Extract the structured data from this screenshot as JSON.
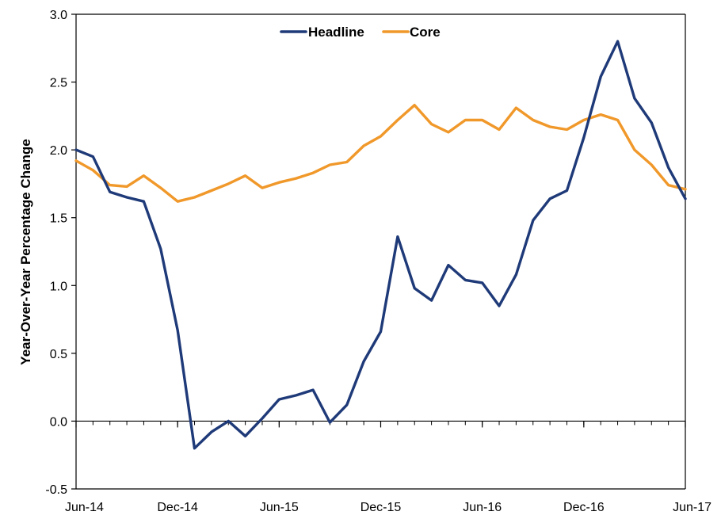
{
  "chart_data": {
    "type": "line",
    "title": "",
    "xlabel": "",
    "ylabel": "Year-Over-Year Percentage Change",
    "ylim": [
      -0.5,
      3.0
    ],
    "yticks": [
      "-0.5",
      "0.0",
      "0.5",
      "1.0",
      "1.5",
      "2.0",
      "2.5",
      "3.0"
    ],
    "ytick_values": [
      -0.5,
      0.0,
      0.5,
      1.0,
      1.5,
      2.0,
      2.5,
      3.0
    ],
    "xtick_labels": [
      "Jun-14",
      "Dec-14",
      "Jun-15",
      "Dec-15",
      "Jun-16",
      "Dec-16",
      "Jun-17"
    ],
    "xtick_dates": [
      "2014-06",
      "2014-12",
      "2015-06",
      "2015-12",
      "2016-06",
      "2016-12",
      "2017-06"
    ],
    "x": [
      "2014-06",
      "2014-07",
      "2014-08",
      "2014-09",
      "2014-10",
      "2014-11",
      "2014-12",
      "2015-01",
      "2015-02",
      "2015-03",
      "2015-04",
      "2015-05",
      "2015-06",
      "2015-07",
      "2015-08",
      "2015-09",
      "2015-10",
      "2015-11",
      "2015-12",
      "2016-01",
      "2016-02",
      "2016-03",
      "2016-04",
      "2016-05",
      "2016-06",
      "2016-07",
      "2016-08",
      "2016-09",
      "2016-10",
      "2016-11",
      "2016-12",
      "2017-01",
      "2017-02",
      "2017-03",
      "2017-04",
      "2017-05",
      "2017-06"
    ],
    "grid": false,
    "legend_position": "top-center",
    "series": [
      {
        "name": "Headline",
        "color": "#1f3a78",
        "values": [
          2.0,
          1.95,
          1.69,
          1.65,
          1.62,
          1.27,
          0.67,
          -0.2,
          -0.08,
          0.0,
          -0.11,
          0.02,
          0.16,
          0.19,
          0.23,
          -0.01,
          0.12,
          0.44,
          0.66,
          1.36,
          0.98,
          0.89,
          1.15,
          1.04,
          1.02,
          0.85,
          1.08,
          1.48,
          1.64,
          1.7,
          2.09,
          2.54,
          2.8,
          2.38,
          2.2,
          1.87,
          1.64
        ]
      },
      {
        "name": "Core",
        "color": "#f0982a",
        "values": [
          1.92,
          1.85,
          1.74,
          1.73,
          1.81,
          1.72,
          1.62,
          1.65,
          1.7,
          1.75,
          1.81,
          1.72,
          1.76,
          1.79,
          1.83,
          1.89,
          1.91,
          2.03,
          2.1,
          2.22,
          2.33,
          2.19,
          2.13,
          2.22,
          2.22,
          2.15,
          2.31,
          2.22,
          2.17,
          2.15,
          2.22,
          2.26,
          2.22,
          2.0,
          1.89,
          1.74,
          1.71
        ]
      }
    ]
  }
}
